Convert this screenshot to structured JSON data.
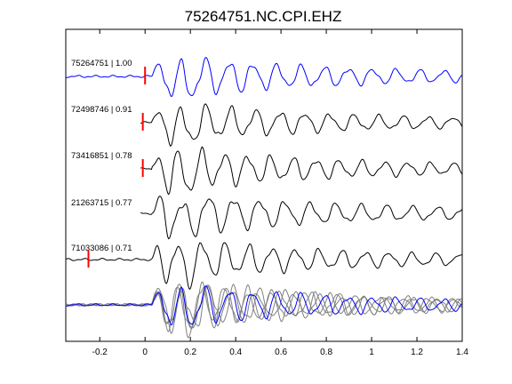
{
  "chart_data": {
    "type": "line",
    "title": "75264751.NC.CPI.EHZ",
    "xlabel": "",
    "ylabel": "",
    "xlim": [
      -0.35,
      1.4
    ],
    "x_ticks": [
      -0.2,
      0,
      0.2,
      0.4,
      0.6,
      0.8,
      1,
      1.2,
      1.4
    ],
    "x_tick_labels": [
      "-0.2",
      "0",
      "0.2",
      "0.4",
      "0.6",
      "0.8",
      "1",
      "1.2",
      "1.4"
    ],
    "grid": false,
    "traces": [
      {
        "label": "75264751 | 1.00",
        "event_id": "75264751",
        "correlation": 1.0,
        "color": "#0000ff",
        "pick_time": 0.0,
        "waveform": "reference"
      },
      {
        "label": "72498746 | 0.91",
        "event_id": "72498746",
        "correlation": 0.91,
        "color": "#000000",
        "pick_time": -0.01,
        "waveform": "similar"
      },
      {
        "label": "73416851 | 0.78",
        "event_id": "73416851",
        "correlation": 0.78,
        "color": "#000000",
        "pick_time": -0.01,
        "waveform": "similar"
      },
      {
        "label": "21263715 | 0.77",
        "event_id": "21263715",
        "correlation": 0.77,
        "color": "#000000",
        "pick_time": null,
        "waveform": "similar"
      },
      {
        "label": "71033086 | 0.71",
        "event_id": "71033086",
        "correlation": 0.71,
        "color": "#000000",
        "pick_time": -0.25,
        "waveform": "similar"
      }
    ],
    "stack": {
      "description": "overlay of all traces",
      "reference_color": "#0000ff",
      "overlay_color": "#808080"
    },
    "pick_marker_color": "#ff0000"
  }
}
